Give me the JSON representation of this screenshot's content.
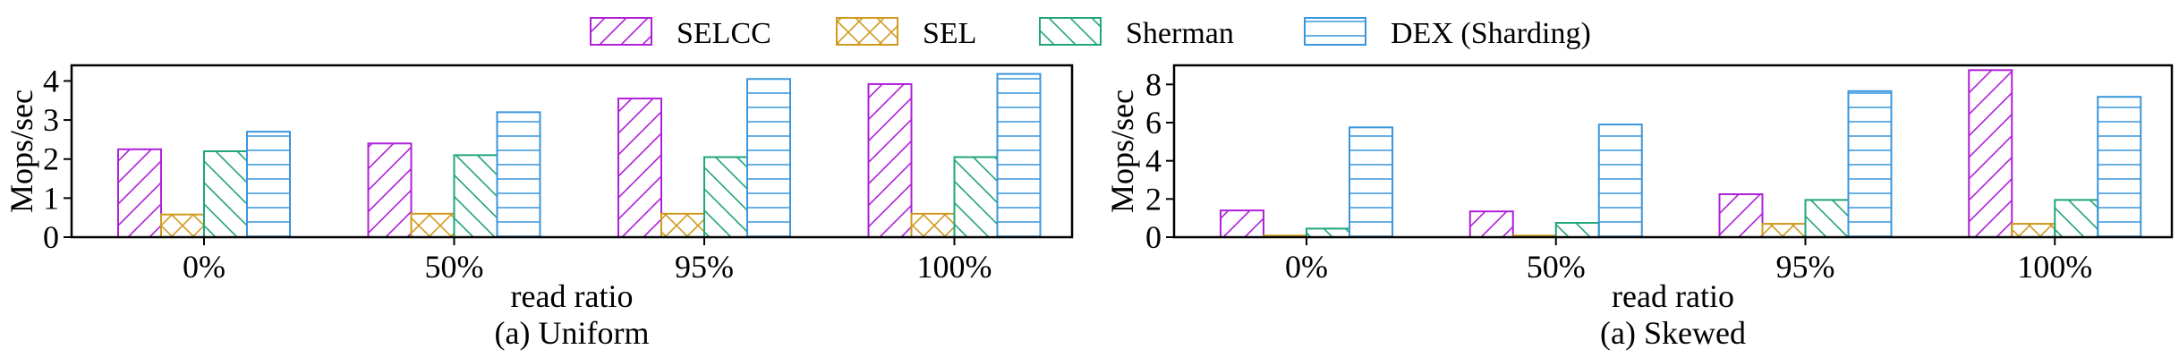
{
  "legend": [
    {
      "name": "SELCC",
      "color": "#b020d8",
      "hatch": "diag-fwd"
    },
    {
      "name": "SEL",
      "color": "#d09a20",
      "hatch": "cross"
    },
    {
      "name": "Sherman",
      "color": "#21a57e",
      "hatch": "diag-back"
    },
    {
      "name": "DEX (Sharding)",
      "color": "#3a96dc",
      "hatch": "horizontal"
    }
  ],
  "chart_data": [
    {
      "type": "bar",
      "caption": "(a) Uniform",
      "xlabel": "read ratio",
      "ylabel": "Mops/sec",
      "categories": [
        "0%",
        "50%",
        "95%",
        "100%"
      ],
      "ylim": [
        0,
        4.4
      ],
      "yticks": [
        0,
        1,
        2,
        3,
        4
      ],
      "series": [
        {
          "name": "SELCC",
          "values": [
            2.25,
            2.4,
            3.55,
            3.92
          ]
        },
        {
          "name": "SEL",
          "values": [
            0.58,
            0.6,
            0.6,
            0.6
          ]
        },
        {
          "name": "Sherman",
          "values": [
            2.2,
            2.1,
            2.05,
            2.05
          ]
        },
        {
          "name": "DEX (Sharding)",
          "values": [
            2.7,
            3.2,
            4.05,
            4.18
          ]
        }
      ]
    },
    {
      "type": "bar",
      "caption": "(a) Skewed",
      "xlabel": "read ratio",
      "ylabel": "Mops/sec",
      "categories": [
        "0%",
        "50%",
        "95%",
        "100%"
      ],
      "ylim": [
        0,
        9
      ],
      "yticks": [
        0,
        2,
        4,
        6,
        8
      ],
      "series": [
        {
          "name": "SELCC",
          "values": [
            1.4,
            1.35,
            2.25,
            8.75
          ]
        },
        {
          "name": "SEL",
          "values": [
            0.08,
            0.08,
            0.7,
            0.7
          ]
        },
        {
          "name": "Sherman",
          "values": [
            0.45,
            0.75,
            1.95,
            1.95
          ]
        },
        {
          "name": "DEX (Sharding)",
          "values": [
            5.75,
            5.9,
            7.65,
            7.35
          ]
        }
      ]
    }
  ]
}
